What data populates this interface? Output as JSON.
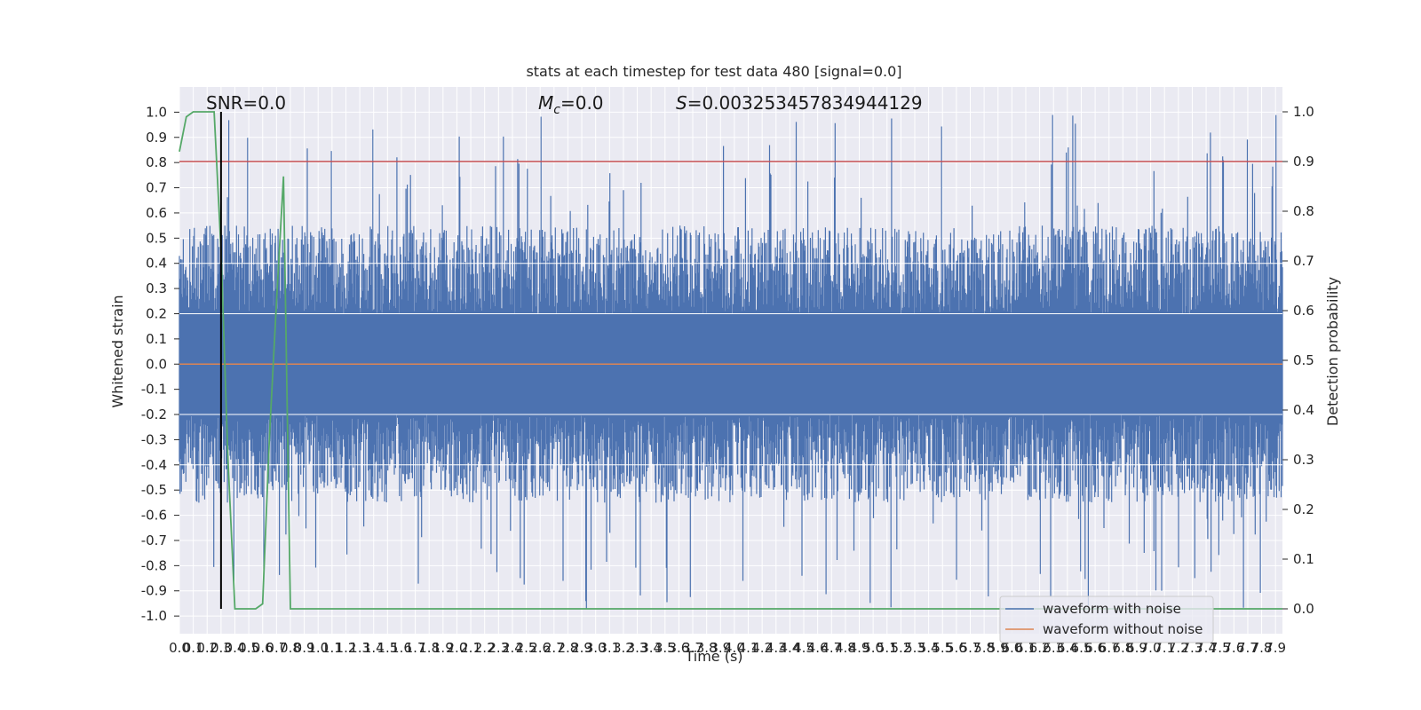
{
  "chart_data": {
    "type": "line",
    "title": "stats at each timestep for test data 480 [signal=0.0]",
    "xlabel": "Time (s)",
    "ylabel": "Whitened strain",
    "y2label": "Detection probability",
    "xlim": [
      0.0,
      7.95
    ],
    "ylim": [
      -1.07,
      1.1
    ],
    "y2lim": [
      -0.05,
      1.05
    ],
    "xticks": [
      "0.0",
      "0.1",
      "0.2",
      "0.3",
      "0.4",
      "0.5",
      "0.6",
      "0.7",
      "0.8",
      "0.9",
      "1.0",
      "1.1",
      "1.2",
      "1.3",
      "1.4",
      "1.5",
      "1.6",
      "1.7",
      "1.8",
      "1.9",
      "2.0",
      "2.1",
      "2.2",
      "2.3",
      "2.4",
      "2.5",
      "2.6",
      "2.7",
      "2.8",
      "2.9",
      "3.0",
      "3.1",
      "3.2",
      "3.3",
      "3.4",
      "3.5",
      "3.6",
      "3.7",
      "3.8",
      "3.9",
      "4.0",
      "4.1",
      "4.2",
      "4.3",
      "4.4",
      "4.5",
      "4.6",
      "4.7",
      "4.8",
      "4.9",
      "5.0",
      "5.1",
      "5.2",
      "5.3",
      "5.4",
      "5.5",
      "5.6",
      "5.7",
      "5.8",
      "5.9",
      "6.0",
      "6.1",
      "6.2",
      "6.3",
      "6.4",
      "6.5",
      "6.6",
      "6.7",
      "6.8",
      "6.9",
      "7.0",
      "7.1",
      "7.2",
      "7.3",
      "7.4",
      "7.5",
      "7.6",
      "7.7",
      "7.8",
      "7.9"
    ],
    "yticks": [
      "1.0",
      "0.9",
      "0.8",
      "0.7",
      "0.6",
      "0.5",
      "0.4",
      "0.3",
      "0.2",
      "0.1",
      "0.0",
      "-0.1",
      "-0.2",
      "-0.3",
      "-0.4",
      "-0.5",
      "-0.6",
      "-0.7",
      "-0.8",
      "-0.9",
      "-1.0"
    ],
    "y2ticks": [
      "1.0",
      "0.9",
      "0.8",
      "0.7",
      "0.6",
      "0.5",
      "0.4",
      "0.3",
      "0.2",
      "0.1",
      "0.0"
    ],
    "grid": true,
    "legend_position": "lower right",
    "annotations": {
      "snr": "SNR=0.0",
      "mc_symbol": "M",
      "mc_sub": "c",
      "mc_value": "=0.0",
      "s_symbol": "S",
      "s_value": "=0.0032534578349441​29"
    },
    "series": [
      {
        "name": "waveform with noise",
        "axis": "left",
        "color": "#4c72b0",
        "noise_envelope": {
          "typical_min": -0.55,
          "typical_max": 0.55,
          "extreme_min": -0.97,
          "extreme_max": 0.99
        }
      },
      {
        "name": "waveform without noise",
        "axis": "left",
        "color": "#dd8452",
        "values_constant": 0.0
      },
      {
        "name": "",
        "axis": "right",
        "color": "#55a868",
        "x": [
          0.0,
          0.05,
          0.1,
          0.15,
          0.2,
          0.25,
          0.3,
          0.35,
          0.4,
          0.45,
          0.5,
          0.55,
          0.6,
          0.65,
          0.7,
          0.75,
          0.8,
          0.85,
          0.9,
          1.0,
          7.95
        ],
        "y": [
          0.92,
          0.99,
          1.0,
          1.0,
          1.0,
          1.0,
          0.72,
          0.3,
          0.0,
          0.0,
          0.0,
          0.0,
          0.01,
          0.35,
          0.62,
          0.87,
          0.0,
          0.0,
          0.0,
          0.0,
          0.0
        ]
      },
      {
        "name": "",
        "axis": "right",
        "color": "#c44e52",
        "values_constant": 0.9
      }
    ],
    "marker_line": {
      "x": 0.3,
      "color": "#000000",
      "y2_from": 0.0,
      "y2_to": 1.0
    }
  },
  "colors": {
    "background": "#ffffff",
    "plot_background": "#eaeaf2",
    "grid": "#ffffff"
  }
}
